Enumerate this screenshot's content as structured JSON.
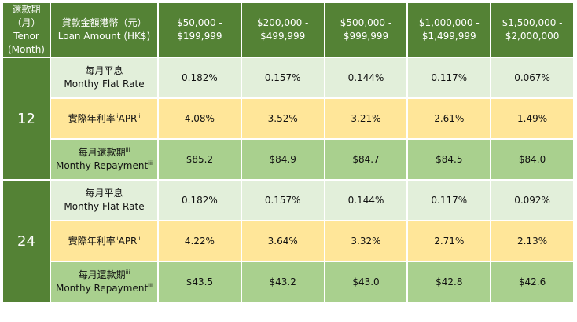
{
  "header": {
    "tenor": [
      "還款期",
      "（月）",
      "Tenor",
      "(Month)"
    ],
    "amount": [
      "貸款金額港幣（元）",
      "Loan Amount (HK$)"
    ],
    "ranges": [
      [
        "$50,000 -",
        "$199,999"
      ],
      [
        "$200,000 -",
        "$499,999"
      ],
      [
        "$500,000 -",
        "$999,999"
      ],
      [
        "$1,000,000 -",
        "$1,499,999"
      ],
      [
        "$1,500,000 -",
        "$2,000,000"
      ]
    ]
  },
  "labels": {
    "flat_zh": "每月平息",
    "flat_en": "Monthy Flat Rate",
    "apr_zh": "實際年利率",
    "apr_sup1": "ii",
    "apr_en": "APR",
    "apr_sup2": "ii",
    "rep_zh": "每月還款期",
    "rep_sup": "iii",
    "rep_en": "Monthy Repayment"
  },
  "groups": [
    {
      "tenor": "12",
      "flat": [
        "0.182%",
        "0.157%",
        "0.144%",
        "0.117%",
        "0.067%"
      ],
      "apr": [
        "4.08%",
        "3.52%",
        "3.21%",
        "2.61%",
        "1.49%"
      ],
      "repay": [
        "$85.2",
        "$84.9",
        "$84.7",
        "$84.5",
        "$84.0"
      ]
    },
    {
      "tenor": "24",
      "flat": [
        "0.182%",
        "0.157%",
        "0.144%",
        "0.117%",
        "0.092%"
      ],
      "apr": [
        "4.22%",
        "3.64%",
        "3.32%",
        "2.71%",
        "2.13%"
      ],
      "repay": [
        "$43.5",
        "$43.2",
        "$43.0",
        "$42.8",
        "$42.6"
      ]
    }
  ],
  "colors": {
    "header": "#548235",
    "flat": "#e2efda",
    "apr": "#ffe699",
    "repay": "#a9d08e"
  }
}
